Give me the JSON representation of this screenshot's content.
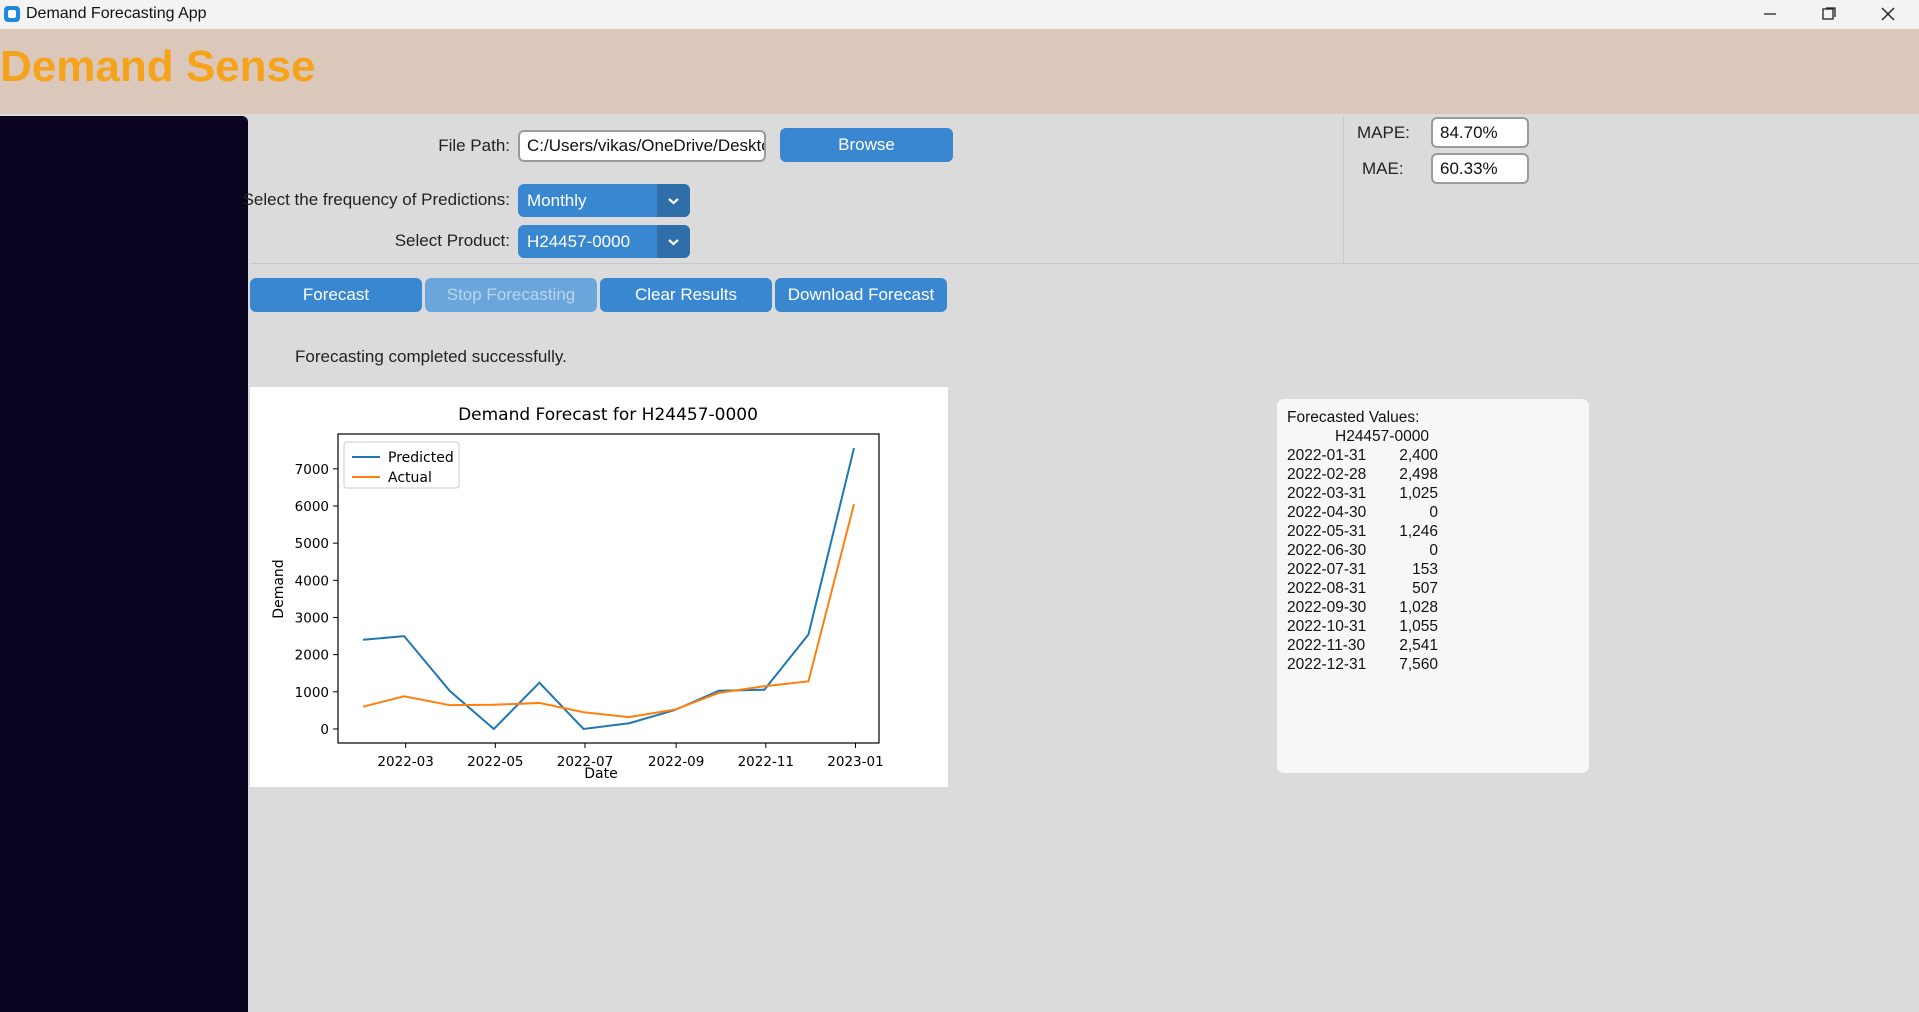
{
  "window": {
    "title": "Demand Forecasting App"
  },
  "header": {
    "title": "Demand Sense"
  },
  "form": {
    "file_path": {
      "label": "File Path:",
      "value": "C:/Users/vikas/OneDrive/Desktop",
      "button": "Browse"
    },
    "frequency": {
      "label": "Select the frequency of Predictions:",
      "value": "Monthly"
    },
    "product": {
      "label": "Select Product:",
      "value": "H24457-0000"
    }
  },
  "metrics": [
    {
      "label": "MAPE:",
      "value": "84.70%"
    },
    {
      "label": "MAE:",
      "value": "60.33%"
    }
  ],
  "actions": [
    "Forecast",
    "Stop Forecasting",
    "Clear Results",
    "Download Forecast"
  ],
  "status": "Forecasting completed successfully.",
  "chart_data": {
    "type": "line",
    "title": "Demand Forecast for H24457-0000",
    "xlabel": "Date",
    "ylabel": "Demand",
    "x": [
      "2022-01-31",
      "2022-02-28",
      "2022-03-31",
      "2022-04-30",
      "2022-05-31",
      "2022-06-30",
      "2022-07-31",
      "2022-08-31",
      "2022-09-30",
      "2022-10-31",
      "2022-11-30",
      "2022-12-31"
    ],
    "series": [
      {
        "name": "Predicted",
        "color": "#1f77b4",
        "values": [
          2400,
          2498,
          1025,
          0,
          1246,
          0,
          153,
          507,
          1028,
          1055,
          2541,
          7560
        ],
        "value_labels": [
          "2,400",
          "2,498",
          "1,025",
          "0",
          "1,246",
          "0",
          "153",
          "507",
          "1,028",
          "1,055",
          "2,541",
          "7,560"
        ]
      },
      {
        "name": "Actual",
        "color": "#ff7f0e",
        "values": [
          600,
          880,
          640,
          650,
          700,
          450,
          320,
          520,
          970,
          1150,
          1280,
          6050
        ]
      }
    ],
    "xlim": [
      "2022-01-14",
      "2023-01-17"
    ],
    "xticks": [
      "2022-03",
      "2022-05",
      "2022-07",
      "2022-09",
      "2022-11",
      "2023-01"
    ],
    "ylim": [
      -378,
      7938
    ],
    "yticks": [
      0,
      1000,
      2000,
      3000,
      4000,
      5000,
      6000,
      7000
    ],
    "legend": "upper left"
  },
  "forecast_panel": {
    "title": "Forecasted Values:",
    "column": "H24457-0000"
  }
}
